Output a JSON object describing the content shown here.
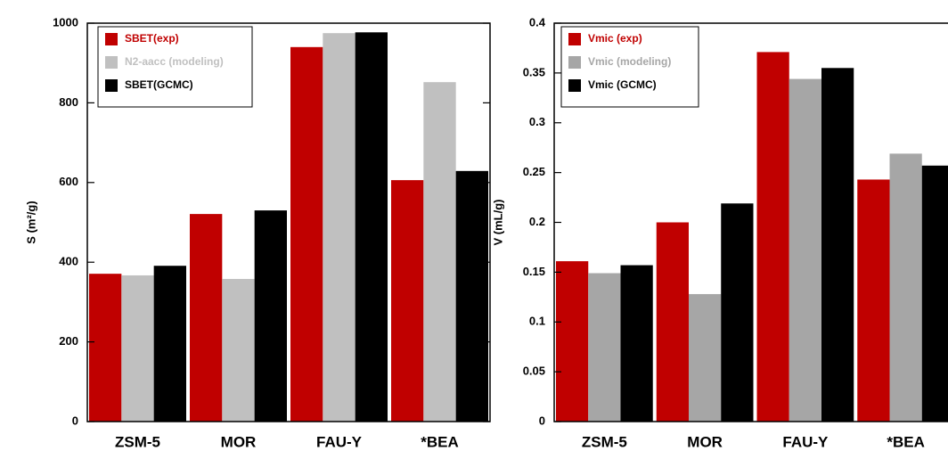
{
  "chart_data": [
    {
      "type": "bar",
      "ylabel": "S (m²/g)",
      "categories": [
        "ZSM-5",
        "MOR",
        "FAU-Y",
        "*BEA"
      ],
      "series": [
        {
          "name": "SBET(exp)",
          "color": "#c00000",
          "values": [
            371,
            521,
            940,
            606
          ]
        },
        {
          "name": "N2-aacc (modeling)",
          "color": "#c0c0c0",
          "values": [
            367,
            358,
            975,
            852
          ]
        },
        {
          "name": "SBET(GCMC)",
          "color": "#000000",
          "values": [
            391,
            530,
            977,
            629
          ]
        }
      ],
      "ylim": [
        0,
        1000
      ],
      "yticks": [
        0,
        200,
        400,
        600,
        800,
        1000
      ],
      "legend": "upper left"
    },
    {
      "type": "bar",
      "ylabel": "V (mL/g)",
      "categories": [
        "ZSM-5",
        "MOR",
        "FAU-Y",
        "*BEA"
      ],
      "series": [
        {
          "name": "Vmic (exp)",
          "color": "#c00000",
          "values": [
            0.161,
            0.2,
            0.371,
            0.243
          ]
        },
        {
          "name": "Vmic (modeling)",
          "color": "#a6a6a6",
          "values": [
            0.149,
            0.128,
            0.344,
            0.269
          ]
        },
        {
          "name": "Vmic (GCMC)",
          "color": "#000000",
          "values": [
            0.157,
            0.219,
            0.355,
            0.257
          ]
        }
      ],
      "ylim": [
        0,
        0.4
      ],
      "yticks": [
        0,
        0.05,
        0.1,
        0.15,
        0.2,
        0.25,
        0.3,
        0.35,
        0.4
      ],
      "legend": "upper left"
    }
  ]
}
